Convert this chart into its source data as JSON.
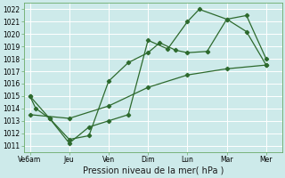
{
  "background_color": "#cdeaea",
  "grid_color": "#ffffff",
  "line_color": "#2d6a2d",
  "marker_color": "#2d6a2d",
  "xlabel_text": "Pression niveau de la mer( hPa )",
  "ylim": [
    1010.5,
    1022.5
  ],
  "yticks": [
    1011,
    1012,
    1013,
    1014,
    1015,
    1016,
    1017,
    1018,
    1019,
    1020,
    1021,
    1022
  ],
  "x_labels": [
    "Ve6am",
    "Jeu",
    "Ven",
    "Dim",
    "Lun",
    "Mar",
    "Mer"
  ],
  "x_positions": [
    0,
    1,
    2,
    3,
    4,
    5,
    6
  ],
  "series1_x": [
    0.0,
    0.15,
    0.5,
    1.0,
    1.5,
    2.0,
    2.5,
    3.0,
    3.3,
    3.7,
    4.0,
    4.5,
    5.0,
    5.5,
    6.0
  ],
  "series1_y": [
    1015.0,
    1014.0,
    1013.2,
    1011.5,
    1011.8,
    1016.2,
    1017.7,
    1018.5,
    1019.3,
    1018.7,
    1018.5,
    1018.6,
    1021.2,
    1021.5,
    1018.0
  ],
  "series2_x": [
    0.0,
    0.5,
    1.0,
    1.5,
    2.0,
    2.5,
    3.0,
    3.5,
    4.0,
    4.3,
    5.0,
    5.5,
    6.0
  ],
  "series2_y": [
    1015.0,
    1013.2,
    1011.2,
    1012.5,
    1013.0,
    1013.5,
    1019.5,
    1018.8,
    1021.0,
    1022.0,
    1021.2,
    1020.2,
    1017.5
  ],
  "series3_x": [
    0.0,
    1.0,
    2.0,
    3.0,
    4.0,
    5.0,
    6.0
  ],
  "series3_y": [
    1013.5,
    1013.2,
    1014.2,
    1015.7,
    1016.7,
    1017.2,
    1017.5
  ],
  "figsize": [
    3.2,
    2.0
  ],
  "dpi": 100,
  "tick_fontsize": 5.5,
  "xlabel_fontsize": 7.0
}
